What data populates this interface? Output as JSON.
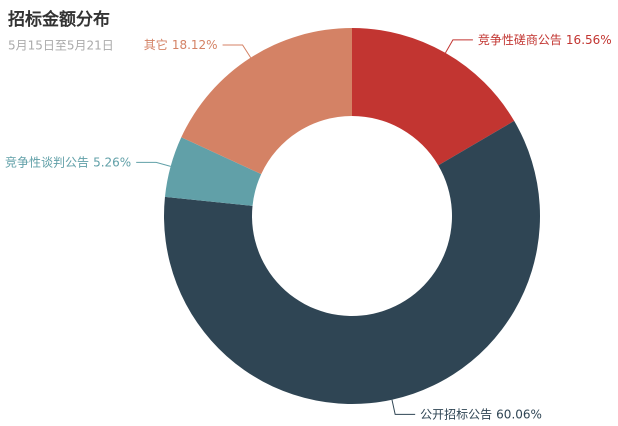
{
  "chart_data": {
    "type": "pie",
    "title": "招标金额分布",
    "subtitle": "5月15日至5月21日",
    "categories": [
      "竞争性磋商公告",
      "公开招标公告",
      "竞争性谈判公告",
      "其它"
    ],
    "values": [
      16.56,
      60.06,
      5.26,
      18.12
    ],
    "value_labels": [
      "16.56%",
      "60.06%",
      "5.26%",
      "18.12%"
    ],
    "colors": [
      "#c23531",
      "#2f4554",
      "#61a0a8",
      "#d48265"
    ]
  }
}
